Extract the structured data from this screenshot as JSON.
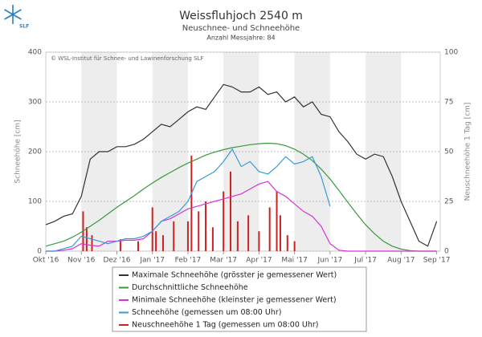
{
  "logo": "SLF",
  "chart_data": {
    "type": "line",
    "title": "Weissfluhjoch 2540 m",
    "subtitle": "Neuschnee- und Schneehöhe",
    "subtitle2": "Anzahl Messjahre: 84",
    "credit": "© WSL-Institut für Schnee- und Lawinenforschung SLF",
    "ylabel": "Schneehöhe [cm]",
    "y2label": "Neuschneehöhe 1 Tag [cm]",
    "xlim": [
      0,
      11.1
    ],
    "xticks": [
      {
        "value": 0,
        "label": "Okt '16"
      },
      {
        "value": 1,
        "label": "Nov '16"
      },
      {
        "value": 2,
        "label": "Dez '16"
      },
      {
        "value": 3,
        "label": "Jan '17"
      },
      {
        "value": 4,
        "label": "Feb '17"
      },
      {
        "value": 5,
        "label": "Mar '17"
      },
      {
        "value": 6,
        "label": "Apr '17"
      },
      {
        "value": 7,
        "label": "Mai '17"
      },
      {
        "value": 8,
        "label": "Jun '17"
      },
      {
        "value": 9,
        "label": "Jul '17"
      },
      {
        "value": 10,
        "label": "Aug '17"
      },
      {
        "value": 11,
        "label": "Sep '17"
      }
    ],
    "ylim": [
      0,
      400
    ],
    "yticks": [
      0,
      100,
      200,
      300,
      400
    ],
    "y2lim": [
      0,
      100
    ],
    "y2ticks": [
      0,
      25,
      50,
      75,
      100
    ],
    "grid": true,
    "x": [
      0,
      0.25,
      0.5,
      0.75,
      1,
      1.25,
      1.5,
      1.75,
      2,
      2.25,
      2.5,
      2.75,
      3,
      3.25,
      3.5,
      3.75,
      4,
      4.25,
      4.5,
      4.75,
      5,
      5.25,
      5.5,
      5.75,
      6,
      6.25,
      6.5,
      6.75,
      7,
      7.25,
      7.5,
      7.75,
      8,
      8.25,
      8.5,
      8.75,
      9,
      9.25,
      9.5,
      9.75,
      10,
      10.25,
      10.5,
      10.75,
      11
    ],
    "series": [
      {
        "name": "Maximale Schneehöhe (grösster je gemessener Wert)",
        "color": "#333333",
        "values": [
          53,
          60,
          70,
          75,
          110,
          185,
          200,
          200,
          210,
          210,
          215,
          225,
          240,
          255,
          250,
          265,
          280,
          290,
          285,
          310,
          335,
          330,
          320,
          320,
          330,
          315,
          320,
          300,
          310,
          290,
          300,
          275,
          270,
          240,
          220,
          195,
          185,
          195,
          190,
          150,
          100,
          60,
          20,
          10,
          60
        ]
      },
      {
        "name": "Durchschnittliche Schneehöhe",
        "color": "#3a9a3a",
        "values": [
          10,
          15,
          20,
          28,
          38,
          50,
          62,
          75,
          88,
          100,
          112,
          125,
          137,
          148,
          158,
          168,
          177,
          185,
          193,
          199,
          204,
          208,
          211,
          214,
          216,
          217,
          216,
          212,
          205,
          195,
          182,
          165,
          145,
          122,
          98,
          75,
          53,
          35,
          20,
          10,
          4,
          1,
          0,
          0,
          0
        ]
      },
      {
        "name": "Minimale Schneehöhe (kleinster je gemessener Wert)",
        "color": "#d633d6",
        "values": [
          0,
          0,
          2,
          5,
          15,
          12,
          10,
          20,
          20,
          22,
          22,
          25,
          40,
          60,
          65,
          75,
          85,
          90,
          95,
          100,
          105,
          110,
          115,
          125,
          135,
          140,
          120,
          110,
          95,
          80,
          70,
          50,
          15,
          2,
          0,
          0,
          0,
          0,
          0,
          0,
          0,
          0,
          0,
          0,
          0
        ]
      },
      {
        "name": "Schneehöhe (gemessen um 08:00 Uhr)",
        "color": "#3a9ad9",
        "values": [
          0,
          0,
          5,
          10,
          30,
          25,
          20,
          15,
          20,
          25,
          25,
          30,
          40,
          60,
          70,
          80,
          100,
          140,
          150,
          160,
          180,
          205,
          170,
          180,
          160,
          155,
          170,
          190,
          175,
          180,
          190,
          150,
          90,
          null,
          null,
          null,
          null,
          null,
          null,
          null,
          null,
          null,
          null,
          null,
          null
        ]
      },
      {
        "name": "Neuschneehöhe 1 Tag (gemessen um 08:00 Uhr)",
        "color": "#cc2222",
        "type": "bar",
        "axis": "y2",
        "x": [
          1.05,
          1.15,
          1.3,
          2.1,
          2.6,
          3.0,
          3.1,
          3.3,
          3.6,
          4.0,
          4.1,
          4.3,
          4.5,
          4.7,
          5.0,
          5.2,
          5.4,
          5.7,
          6.0,
          6.3,
          6.5,
          6.6,
          6.8,
          7.0
        ],
        "values": [
          20,
          12,
          8,
          6,
          5,
          22,
          10,
          8,
          15,
          15,
          48,
          20,
          25,
          12,
          30,
          40,
          15,
          18,
          10,
          22,
          30,
          18,
          8,
          5
        ]
      }
    ]
  }
}
